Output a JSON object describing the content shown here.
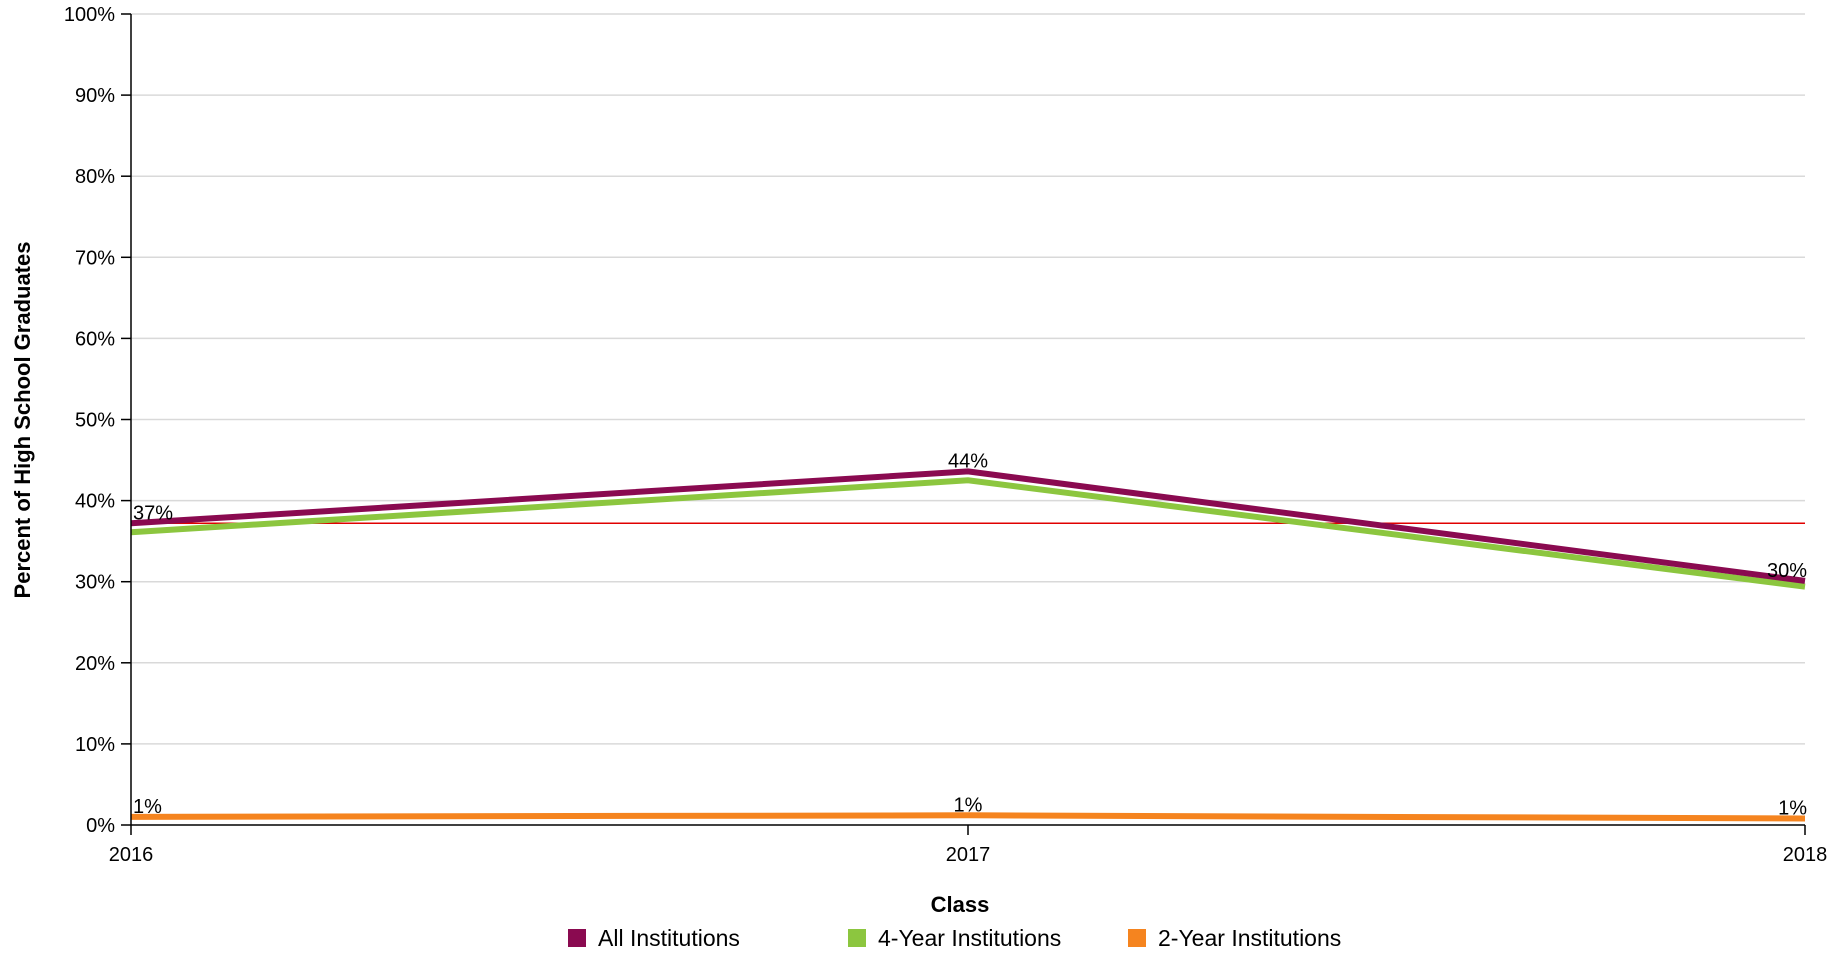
{
  "chart_data": {
    "type": "line",
    "xlabel": "Class",
    "ylabel": "Percent of High School Graduates",
    "x": [
      "2016",
      "2017",
      "2018"
    ],
    "ylim": [
      0,
      100
    ],
    "yticks": [
      "0%",
      "10%",
      "20%",
      "30%",
      "40%",
      "50%",
      "60%",
      "70%",
      "80%",
      "90%",
      "100%"
    ],
    "grid": true,
    "legend_position": "bottom",
    "reference_line": {
      "value": 37.2,
      "color": "#e00000"
    },
    "series": [
      {
        "name": "All Institutions",
        "color": "#8a0a50",
        "values": [
          37.2,
          43.6,
          30.1
        ],
        "labels": [
          "37%",
          "44%",
          "30%"
        ]
      },
      {
        "name": "4-Year Institutions",
        "color": "#8cc63f",
        "values": [
          36.1,
          42.5,
          29.4
        ],
        "labels": []
      },
      {
        "name": "2-Year Institutions",
        "color": "#f5841f",
        "values": [
          1.0,
          1.2,
          0.8
        ],
        "labels": [
          "1%",
          "1%",
          "1%"
        ]
      }
    ]
  }
}
